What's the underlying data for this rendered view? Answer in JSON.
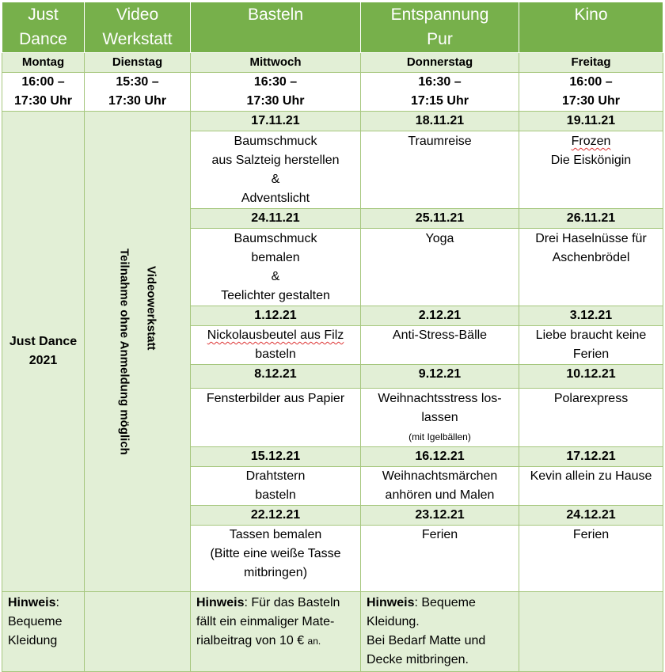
{
  "header": {
    "cols": [
      {
        "line1": "Just",
        "line2": "Dance"
      },
      {
        "line1": "Video",
        "line2": "Werkstatt"
      },
      {
        "line1": "Basteln",
        "line2": ""
      },
      {
        "line1": "Entspannung",
        "line2": "Pur"
      },
      {
        "line1": "Kino",
        "line2": ""
      }
    ]
  },
  "days": [
    "Montag",
    "Dienstag",
    "Mittwoch",
    "Donnerstag",
    "Freitag"
  ],
  "times": [
    {
      "line1": "16:00 –",
      "line2": "17:30 Uhr"
    },
    {
      "line1": "15:30 –",
      "line2": "17:30 Uhr"
    },
    {
      "line1": "16:30 –",
      "line2": "17:30 Uhr"
    },
    {
      "line1": "16:30 –",
      "line2": "17:15 Uhr"
    },
    {
      "line1": "16:00 –",
      "line2": "17:30 Uhr"
    }
  ],
  "side": {
    "just_dance": {
      "line1": "Just Dance",
      "line2": "2021"
    },
    "video_note": "Teilnahme ohne Anmeldung möglich",
    "video_title": "Videowerkstatt"
  },
  "weeks": [
    {
      "dates": [
        "17.11.21",
        "18.11.21",
        "19.11.21"
      ],
      "basteln": [
        "Baumschmuck",
        "aus Salzteig herstellen",
        "&",
        "Adventslicht"
      ],
      "entspannung": [
        "Traumreise"
      ],
      "kino": [
        "Frozen",
        "Die Eiskönigin"
      ]
    },
    {
      "dates": [
        "24.11.21",
        "25.11.21",
        "26.11.21"
      ],
      "basteln": [
        "Baumschmuck",
        "bemalen",
        "&",
        "Teelichter gestalten"
      ],
      "entspannung": [
        "Yoga"
      ],
      "kino": [
        "Drei Haselnüsse für",
        "Aschenbrödel"
      ]
    },
    {
      "dates": [
        "1.12.21",
        "2.12.21",
        "3.12.21"
      ],
      "basteln": [
        "Nickolausbeutel aus Filz",
        "basteln"
      ],
      "entspannung": [
        "Anti-Stress-Bälle"
      ],
      "kino": [
        "Liebe braucht keine",
        "Ferien"
      ]
    },
    {
      "dates": [
        "8.12.21",
        "9.12.21",
        "10.12.21"
      ],
      "basteln": [
        "Fensterbilder aus Papier"
      ],
      "entspannung": [
        "Weihnachtsstress los-",
        "lassen"
      ],
      "entspannung_small": "(mit Igelbällen)",
      "kino": [
        "Polarexpress"
      ]
    },
    {
      "dates": [
        "15.12.21",
        "16.12.21",
        "17.12.21"
      ],
      "basteln": [
        "Drahtstern",
        "basteln"
      ],
      "entspannung": [
        "Weihnachtsmärchen",
        "anhören und Malen"
      ],
      "kino": [
        "Kevin allein zu Hause"
      ]
    },
    {
      "dates": [
        "22.12.21",
        "23.12.21",
        "24.12.21"
      ],
      "basteln": [
        "Tassen bemalen",
        "(Bitte eine weiße Tasse",
        "mitbringen)"
      ],
      "entspannung": [
        "Ferien"
      ],
      "kino": [
        "Ferien"
      ]
    }
  ],
  "notes": {
    "label": "Hinweis",
    "montag": [
      "Bequeme",
      "Kleidung"
    ],
    "basteln": [
      ": Für das Basteln",
      "fällt ein einmaliger Mate-",
      "rialbeitrag von 10 € "
    ],
    "basteln_small": "an.",
    "entspannung": [
      ": Bequeme",
      "Kleidung.",
      "Bei Bedarf Matte und",
      "Decke mitbringen."
    ]
  }
}
